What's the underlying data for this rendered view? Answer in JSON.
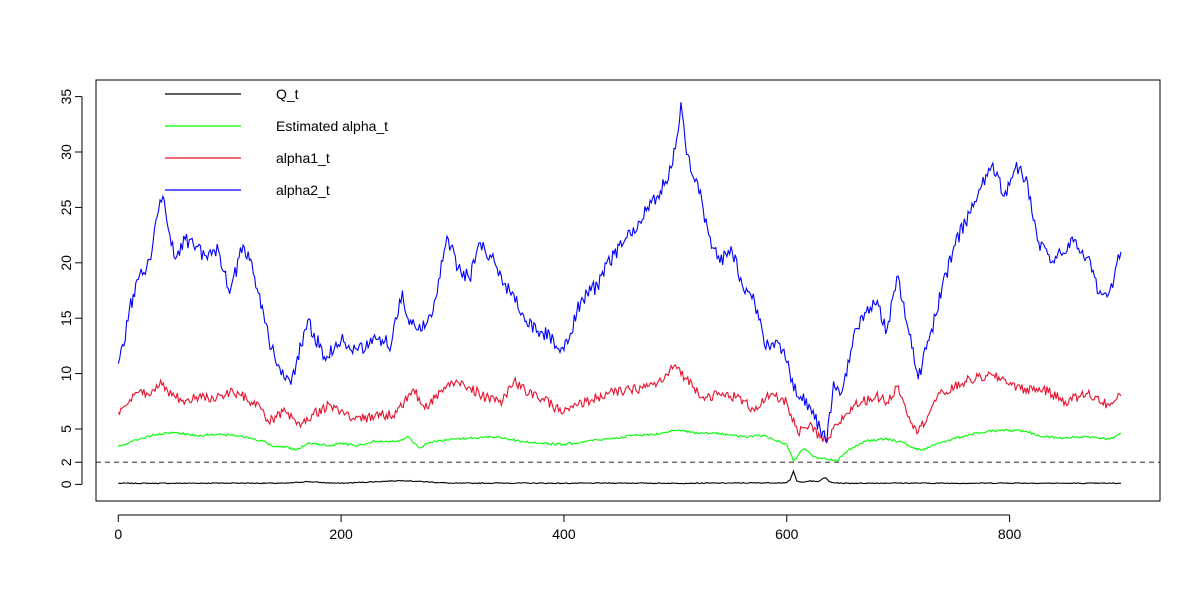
{
  "chart_data": {
    "type": "line",
    "title": "",
    "xlabel": "",
    "ylabel": "",
    "xlim": [
      -20,
      935
    ],
    "ylim": [
      -1.5,
      36.5
    ],
    "grid": false,
    "legend_position": "top-left",
    "x_ticks": [
      0,
      200,
      400,
      600,
      800
    ],
    "y_ticks": [
      0,
      2,
      5,
      10,
      15,
      20,
      25,
      30,
      35
    ],
    "reference_line": {
      "y": 2,
      "style": "dashed",
      "color": "#555555"
    },
    "series": [
      {
        "name": "Q_t",
        "color": "#000000",
        "x": [
          0,
          50,
          100,
          150,
          170,
          185,
          200,
          255,
          300,
          350,
          400,
          450,
          500,
          550,
          600,
          603,
          606,
          609,
          612,
          620,
          628,
          632,
          635,
          638,
          642,
          650,
          700,
          750,
          800,
          850,
          900
        ],
        "values": [
          0.1,
          0.1,
          0.12,
          0.1,
          0.25,
          0.15,
          0.1,
          0.35,
          0.1,
          0.12,
          0.1,
          0.12,
          0.1,
          0.12,
          0.15,
          0.4,
          1.2,
          0.3,
          0.2,
          0.3,
          0.25,
          0.5,
          0.6,
          0.25,
          0.15,
          0.1,
          0.12,
          0.1,
          0.12,
          0.1,
          0.1
        ]
      },
      {
        "name": "Estimated alpha_t",
        "color": "#00ff00",
        "x": [
          0,
          15,
          30,
          50,
          70,
          90,
          110,
          120,
          130,
          140,
          150,
          160,
          170,
          190,
          200,
          215,
          230,
          250,
          260,
          270,
          280,
          300,
          320,
          340,
          360,
          380,
          400,
          420,
          440,
          460,
          480,
          500,
          520,
          540,
          560,
          580,
          600,
          606,
          615,
          625,
          635,
          645,
          655,
          670,
          690,
          705,
          715,
          722,
          735,
          760,
          780,
          800,
          815,
          830,
          850,
          870,
          890,
          900
        ],
        "values": [
          3.4,
          4.0,
          4.4,
          4.7,
          4.4,
          4.5,
          4.4,
          4.1,
          3.9,
          3.4,
          3.4,
          3.1,
          3.7,
          3.5,
          3.7,
          3.5,
          3.9,
          3.9,
          4.3,
          3.3,
          3.8,
          4.1,
          4.2,
          4.3,
          3.9,
          3.7,
          3.6,
          3.9,
          4.1,
          4.4,
          4.5,
          4.9,
          4.6,
          4.6,
          4.3,
          4.4,
          3.6,
          2.1,
          3.2,
          2.5,
          2.3,
          2.1,
          3.1,
          3.9,
          4.1,
          3.8,
          3.2,
          3.1,
          3.7,
          4.4,
          4.8,
          4.9,
          4.8,
          4.3,
          4.2,
          4.3,
          4.1,
          4.6
        ]
      },
      {
        "name": "alpha1_t",
        "color": "#e8112d",
        "x": [
          0,
          8,
          18,
          28,
          38,
          48,
          58,
          70,
          85,
          100,
          115,
          128,
          135,
          150,
          160,
          175,
          190,
          210,
          230,
          250,
          265,
          275,
          290,
          300,
          315,
          330,
          345,
          355,
          365,
          380,
          400,
          420,
          440,
          460,
          480,
          490,
          500,
          510,
          525,
          540,
          555,
          570,
          585,
          600,
          610,
          620,
          630,
          636,
          645,
          660,
          680,
          690,
          700,
          710,
          718,
          735,
          760,
          780,
          795,
          810,
          830,
          850,
          870,
          890,
          900
        ],
        "values": [
          6.5,
          7.2,
          8.3,
          8.0,
          9.4,
          8.0,
          7.6,
          7.9,
          7.8,
          8.3,
          7.8,
          6.8,
          5.6,
          6.6,
          5.4,
          6.3,
          7.2,
          5.9,
          6.1,
          6.5,
          8.6,
          6.8,
          8.5,
          9.2,
          8.8,
          7.8,
          7.5,
          9.3,
          8.5,
          7.7,
          6.5,
          7.5,
          8.2,
          8.5,
          9.0,
          9.5,
          10.8,
          9.5,
          7.9,
          8.1,
          7.9,
          6.8,
          8.0,
          7.4,
          4.6,
          5.3,
          4.2,
          3.8,
          5.4,
          7.1,
          8.0,
          7.4,
          8.9,
          6.1,
          4.7,
          7.9,
          9.3,
          9.8,
          9.5,
          8.6,
          8.6,
          7.5,
          8.2,
          7.1,
          8.0
        ]
      },
      {
        "name": "alpha2_t",
        "color": "#0000ff",
        "x": [
          0,
          5,
          10,
          18,
          28,
          35,
          40,
          50,
          60,
          70,
          80,
          90,
          100,
          112,
          120,
          135,
          145,
          155,
          170,
          185,
          200,
          215,
          230,
          245,
          255,
          260,
          275,
          285,
          295,
          305,
          315,
          325,
          335,
          345,
          355,
          365,
          380,
          400,
          415,
          430,
          445,
          460,
          475,
          490,
          500,
          505,
          510,
          520,
          530,
          540,
          550,
          560,
          570,
          580,
          590,
          600,
          610,
          620,
          630,
          636,
          642,
          650,
          660,
          670,
          680,
          690,
          700,
          710,
          718,
          730,
          750,
          765,
          775,
          785,
          795,
          805,
          815,
          825,
          840,
          855,
          870,
          880,
          890,
          900
        ],
        "values": [
          10.9,
          12.5,
          15.8,
          18.5,
          20.3,
          24.2,
          26.0,
          20.5,
          22.1,
          21.5,
          20.3,
          21.1,
          17.2,
          21.6,
          20.0,
          13.2,
          10.5,
          9.0,
          14.8,
          11.5,
          13.0,
          12.1,
          13.5,
          12.6,
          17.5,
          15.0,
          14.1,
          16.8,
          22.4,
          19.5,
          18.6,
          21.8,
          20.5,
          18.0,
          17.2,
          14.7,
          13.8,
          12.1,
          16.5,
          18.0,
          20.8,
          22.5,
          25.0,
          27.0,
          30.3,
          34.5,
          29.8,
          27.3,
          22.5,
          20.0,
          21.5,
          18.0,
          17.2,
          12.5,
          13.0,
          11.0,
          7.9,
          7.2,
          5.0,
          3.8,
          9.3,
          8.5,
          13.5,
          15.5,
          16.2,
          14.0,
          18.8,
          13.5,
          9.5,
          14.0,
          21.5,
          24.5,
          27.0,
          29.0,
          26.0,
          28.5,
          27.8,
          22.0,
          20.0,
          22.2,
          20.5,
          17.2,
          17.5,
          21.0
        ]
      }
    ]
  }
}
